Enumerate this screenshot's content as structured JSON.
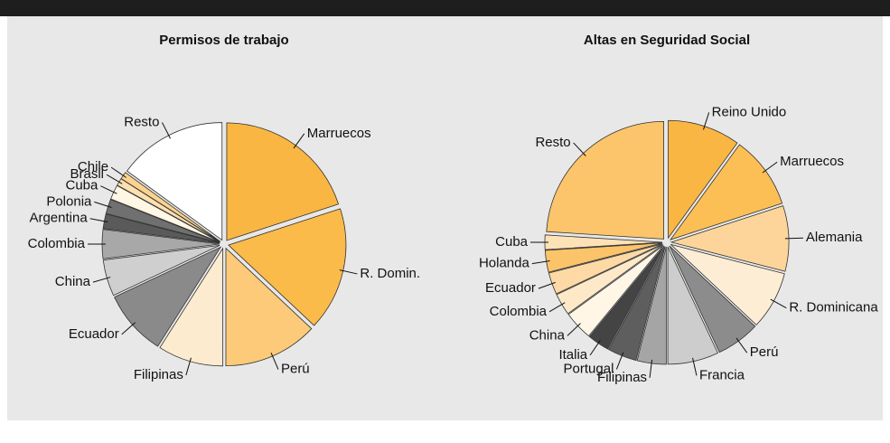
{
  "chart_data": [
    {
      "type": "pie",
      "title": "Permisos de trabajo",
      "categories": [
        "Marruecos",
        "R. Domin.",
        "Perú",
        "Filipinas",
        "Ecuador",
        "China",
        "Colombia",
        "Argentina",
        "Polonia",
        "Cuba",
        "Brasil",
        "Chile",
        "Resto"
      ],
      "values": [
        20,
        17,
        13,
        9,
        9,
        5,
        4,
        2,
        2,
        2,
        1,
        1,
        15
      ],
      "colors": [
        "#f9b642",
        "#fbbb4a",
        "#fcca78",
        "#fdebcf",
        "#8a8a8a",
        "#cfcfcf",
        "#a8a8a8",
        "#5a5a5a",
        "#707070",
        "#fff6e4",
        "#fde0b0",
        "#fcd38e",
        "#ffffff"
      ]
    },
    {
      "type": "pie",
      "title": "Altas en Seguridad Social",
      "categories": [
        "Reino Unido",
        "Marruecos",
        "Alemania",
        "R. Dominicana",
        "Perú",
        "Francia",
        "Filipinas",
        "Portugal",
        "Italia",
        "China",
        "Colombia",
        "Ecuador",
        "Holanda",
        "Cuba",
        "Resto"
      ],
      "values": [
        10,
        10,
        9,
        8,
        6,
        7,
        4,
        4,
        3,
        4,
        3,
        3,
        3,
        2,
        24
      ],
      "colors": [
        "#f9b642",
        "#fbbf56",
        "#fdd59a",
        "#fdedd4",
        "#8c8c8c",
        "#cdcdcd",
        "#a5a5a5",
        "#5e5e5e",
        "#444444",
        "#fff6e6",
        "#fde9c8",
        "#fdd9a6",
        "#fbc46a",
        "#fce2b6",
        "#fcc56c"
      ]
    }
  ]
}
